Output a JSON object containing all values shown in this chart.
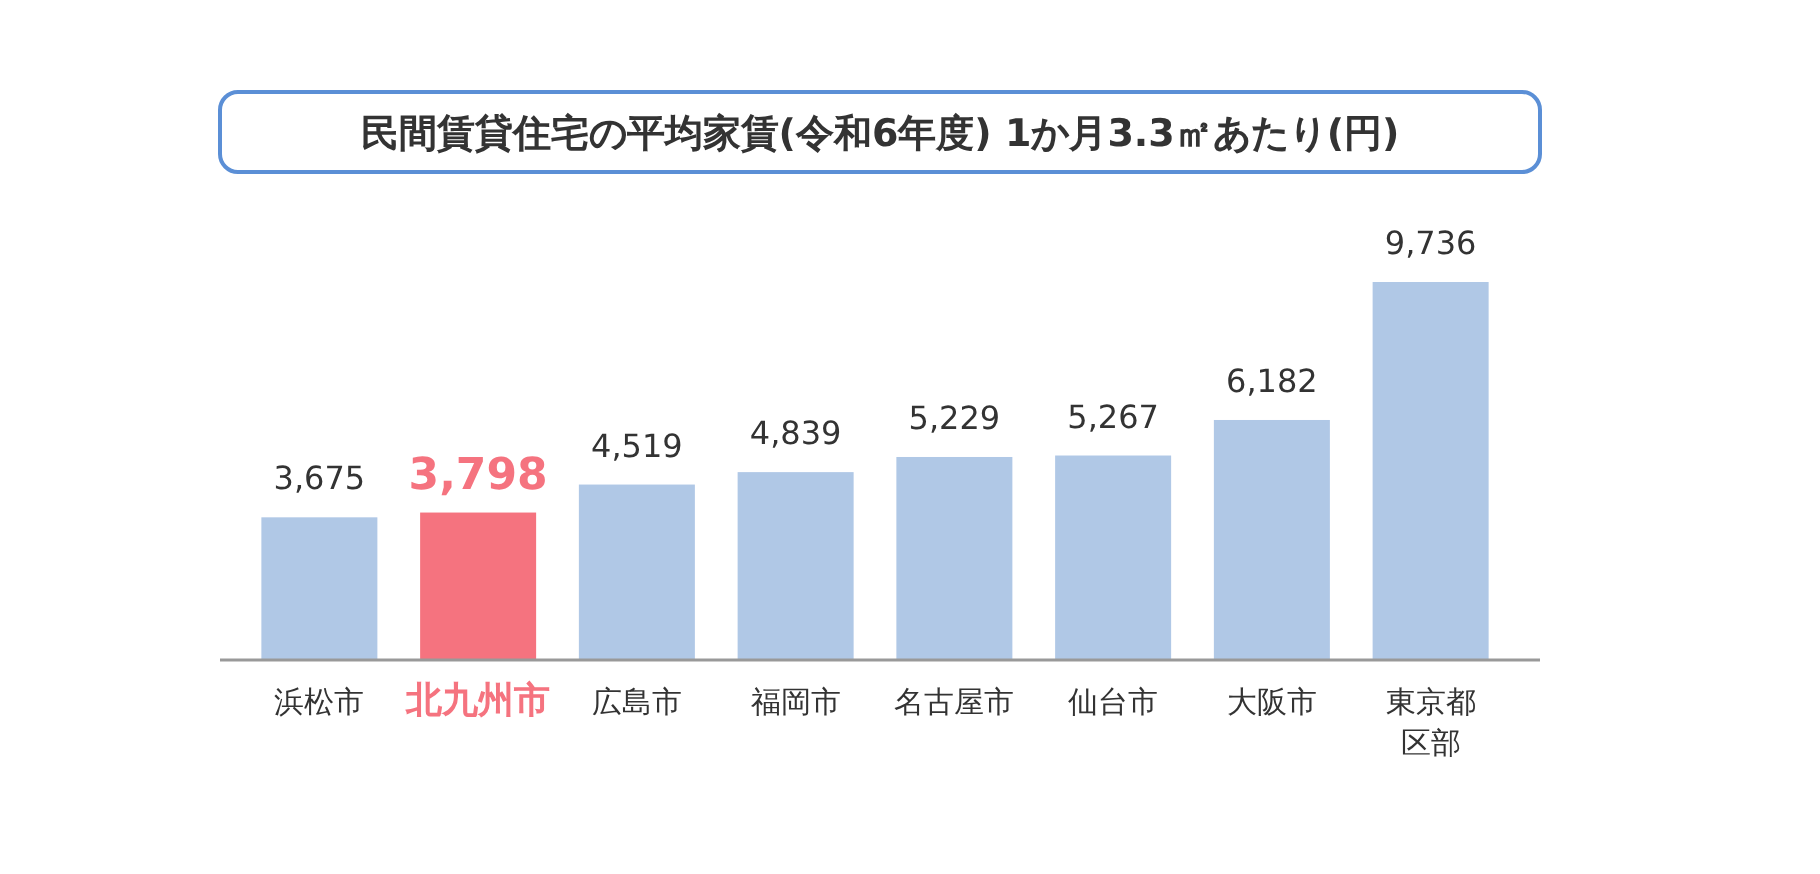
{
  "chart_data": {
    "type": "bar",
    "title": "民間賃貸住宅の平均家賃(令和6年度) 1か月3.3㎡あたり(円)",
    "categories": [
      "浜松市",
      "北九州市",
      "広島市",
      "福岡市",
      "名古屋市",
      "仙台市",
      "大阪市",
      "東京都区部"
    ],
    "values": [
      3675,
      3798,
      4519,
      4839,
      5229,
      5267,
      6182,
      9736
    ],
    "colors": [
      "#b0c8e6",
      "#f5737f",
      "#b0c8e6",
      "#b0c8e6",
      "#b0c8e6",
      "#b0c8e6",
      "#b0c8e6",
      "#b0c8e6"
    ],
    "value_labels": [
      "3,675",
      "3,798",
      "4,519",
      "4,839",
      "5,229",
      "5,267",
      "6,182",
      "9,736"
    ]
  }
}
